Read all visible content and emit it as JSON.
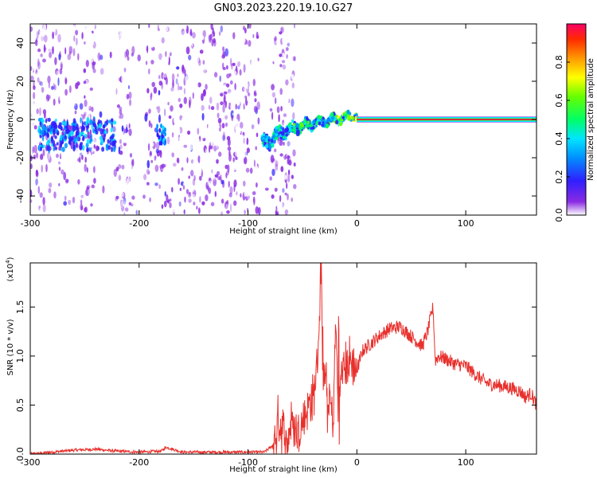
{
  "title": "GN03.2023.220.19.10.G27",
  "colors": {
    "snr_line": "#e8302c",
    "axis": "#000000",
    "trace_center": "#e8004a"
  },
  "chart_data": [
    {
      "type": "heatmap",
      "xlabel": "Height of straight line (km)",
      "ylabel": "Frequency (Hz)",
      "xlim": [
        -300,
        165
      ],
      "ylim": [
        -50,
        50
      ],
      "xticks": [
        -300,
        -200,
        -100,
        0,
        100
      ],
      "yticks": [
        -40,
        -20,
        0,
        20,
        40
      ],
      "colorbar": {
        "label": "Normalized spectral amplitude",
        "range": [
          0,
          1
        ],
        "ticks": [
          "0.0",
          "0.2",
          "0.4",
          "0.6",
          "0.8"
        ],
        "colormap": "rainbow-white-to-red"
      },
      "features": {
        "noise_region_km": [
          -300,
          -65
        ],
        "noise_gaps_km": [
          [
            -240,
            -222
          ],
          [
            -205,
            -195
          ],
          [
            -90,
            -80
          ]
        ],
        "transition_km": [
          -75,
          0
        ],
        "stable_trace_km": [
          0,
          165
        ],
        "stable_trace_frequency_hz": 0,
        "early_cluster_frequency_hz": -8
      }
    },
    {
      "type": "line",
      "xlabel": "Height of straight line (km)",
      "ylabel": "SNR (10 * v/v)",
      "scale_note": "(x10",
      "scale_exp": "4",
      "xlim": [
        -300,
        165
      ],
      "ylim": [
        0,
        1.95
      ],
      "xticks": [
        -300,
        -200,
        -100,
        0,
        100
      ],
      "yticks": [
        0.0,
        0.5,
        1.0,
        1.5
      ],
      "series": [
        {
          "x": [
            -300,
            -280,
            -260,
            -240,
            -220,
            -200,
            -180,
            -175,
            -160,
            -140,
            -120,
            -100,
            -85,
            -76,
            -72,
            -68,
            -64,
            -60,
            -55,
            -50,
            -45,
            -40,
            -36,
            -33,
            -31,
            -29,
            -27,
            -25,
            -22,
            -19,
            -17,
            -15,
            -13,
            -10,
            -5,
            0,
            5,
            10,
            20,
            30,
            40,
            50,
            55,
            60,
            65,
            70,
            72,
            75,
            80,
            90,
            100,
            110,
            120,
            130,
            140,
            150,
            155,
            160,
            165
          ],
          "y": [
            0.0,
            0.02,
            0.04,
            0.05,
            0.03,
            0.02,
            0.03,
            0.07,
            0.02,
            0.02,
            0.02,
            0.02,
            0.02,
            0.1,
            0.35,
            0.25,
            0.1,
            0.35,
            0.2,
            0.3,
            0.5,
            0.55,
            0.95,
            1.93,
            0.6,
            0.85,
            0.4,
            0.6,
            0.3,
            1.45,
            0.1,
            0.75,
            0.85,
            0.9,
            0.95,
            0.85,
            1.05,
            1.1,
            1.2,
            1.28,
            1.3,
            1.2,
            1.15,
            1.1,
            1.25,
            1.5,
            0.95,
            1.0,
            0.98,
            0.92,
            0.9,
            0.8,
            0.72,
            0.7,
            0.68,
            0.64,
            0.58,
            0.62,
            0.5
          ]
        }
      ]
    }
  ]
}
